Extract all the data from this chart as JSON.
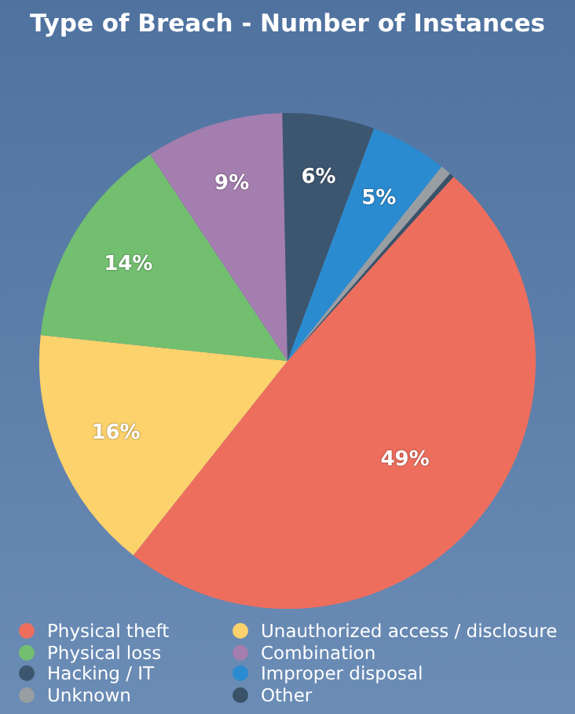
{
  "chart_data": {
    "type": "pie",
    "title": "Type of Breach - Number of Instances",
    "categories": [
      "Physical theft",
      "Unauthorized access / disclosure",
      "Physical loss",
      "Combination",
      "Hacking / IT",
      "Improper disposal",
      "Unknown",
      "Other"
    ],
    "values": [
      49,
      16,
      14,
      9,
      6,
      5,
      0.7,
      0.3
    ],
    "colors": [
      "#ee6e5e",
      "#fcd26c",
      "#72bf6f",
      "#a47eae",
      "#3d566f",
      "#2b8bd0",
      "#999ea3",
      "#3a5268"
    ],
    "value_labels": [
      "49%",
      "16%",
      "14%",
      "9%",
      "6%",
      "5%",
      null,
      null
    ],
    "legend": "bottom"
  }
}
